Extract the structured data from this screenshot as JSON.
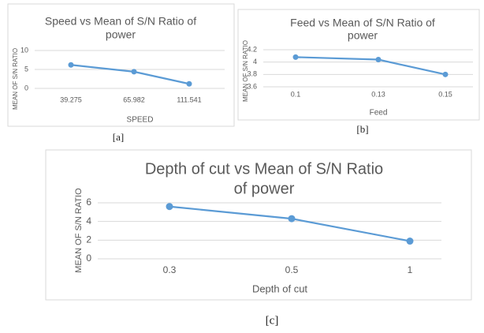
{
  "chart_data": [
    {
      "type": "line",
      "title": [
        "Speed vs Mean of S/N Ratio of",
        "power"
      ],
      "caption": "[a]",
      "categories": [
        "39.275",
        "65.982",
        "111.541"
      ],
      "values": [
        6.2,
        4.4,
        1.2
      ],
      "color": "#5b9bd5",
      "ylim": [
        0,
        10
      ],
      "yticks": [
        0,
        5,
        10
      ],
      "grid": true,
      "ylabel": "MEAN OF S/N RATIO",
      "xlabel": "SPEED"
    },
    {
      "type": "line",
      "title": [
        "Feed vs Mean of S/N Ratio of",
        "power"
      ],
      "caption": "[b]",
      "categories": [
        "0.1",
        "0.13",
        "0.15"
      ],
      "values": [
        4.08,
        4.04,
        3.8
      ],
      "color": "#5b9bd5",
      "ylim": [
        3.6,
        4.2
      ],
      "yticks": [
        3.6,
        3.8,
        4,
        4.2
      ],
      "grid": true,
      "ylabel": "MEAN OF S/N RATIO",
      "xlabel": "Feed"
    },
    {
      "type": "line",
      "title": [
        "Depth of cut vs Mean of S/N Ratio",
        "of power"
      ],
      "caption": "[c]",
      "categories": [
        "0.3",
        "0.5",
        "1"
      ],
      "values": [
        5.6,
        4.3,
        1.9
      ],
      "color": "#5b9bd5",
      "ylim": [
        0,
        6
      ],
      "yticks": [
        0,
        2,
        4,
        6
      ],
      "grid": true,
      "ylabel": "MEAN OF S/N RATIO",
      "xlabel": "Depth of cut"
    }
  ]
}
